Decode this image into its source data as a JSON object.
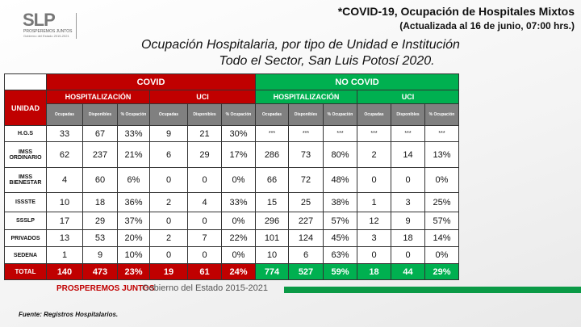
{
  "logo": {
    "mark": "SLP",
    "line1": "PROSPEREMOS JUNTOS",
    "line2": "Gobierno del Estado 2015-2021"
  },
  "header": {
    "line1": "*COVID-19, Ocupación de Hospitales Mixtos",
    "line2": "(Actualizada al 16 de junio, 07:00 hrs.)"
  },
  "title": {
    "line1": "Ocupación Hospitalaria, por tipo de Unidad e Institución",
    "line2": "Todo el Sector, San Luis Potosí 2020."
  },
  "table": {
    "unidad": "UNIDAD",
    "covid": "COVID",
    "nocovid": "NO COVID",
    "hosp": "HOSPITALIZACIÓN",
    "uci": "UCI",
    "sub": [
      "Ocupadas",
      "Disponibles",
      "% Ocupación"
    ],
    "rows": [
      {
        "u": "H.G.S",
        "v": [
          "33",
          "67",
          "33%",
          "9",
          "21",
          "30%",
          "***",
          "***",
          "***",
          "***",
          "***",
          "***"
        ]
      },
      {
        "u": "IMSS ORDINARIO",
        "v": [
          "62",
          "237",
          "21%",
          "6",
          "29",
          "17%",
          "286",
          "73",
          "80%",
          "2",
          "14",
          "13%"
        ]
      },
      {
        "u": "IMSS BIENESTAR",
        "v": [
          "4",
          "60",
          "6%",
          "0",
          "0",
          "0%",
          "66",
          "72",
          "48%",
          "0",
          "0",
          "0%"
        ]
      },
      {
        "u": "ISSSTE",
        "v": [
          "10",
          "18",
          "36%",
          "2",
          "4",
          "33%",
          "15",
          "25",
          "38%",
          "1",
          "3",
          "25%"
        ]
      },
      {
        "u": "SSSLP",
        "v": [
          "17",
          "29",
          "37%",
          "0",
          "0",
          "0%",
          "296",
          "227",
          "57%",
          "12",
          "9",
          "57%"
        ]
      },
      {
        "u": "PRIVADOS",
        "v": [
          "13",
          "53",
          "20%",
          "2",
          "7",
          "22%",
          "101",
          "124",
          "45%",
          "3",
          "18",
          "14%"
        ]
      },
      {
        "u": "SEDENA",
        "v": [
          "1",
          "9",
          "10%",
          "0",
          "0",
          "0%",
          "10",
          "6",
          "63%",
          "0",
          "0",
          "0%"
        ]
      }
    ],
    "total": {
      "u": "TOTAL",
      "v": [
        "140",
        "473",
        "23%",
        "19",
        "61",
        "24%",
        "774",
        "527",
        "59%",
        "18",
        "44",
        "29%"
      ]
    }
  },
  "footer": {
    "brand": "PROSPEREMOS JUNTOS",
    "gov": "Gobierno del Estado 2015-2021",
    "source": "Fuente: Registros Hospitalarios."
  },
  "colors": {
    "covid": "#c00000",
    "nocovid": "#00b050",
    "subheader": "#808080"
  }
}
